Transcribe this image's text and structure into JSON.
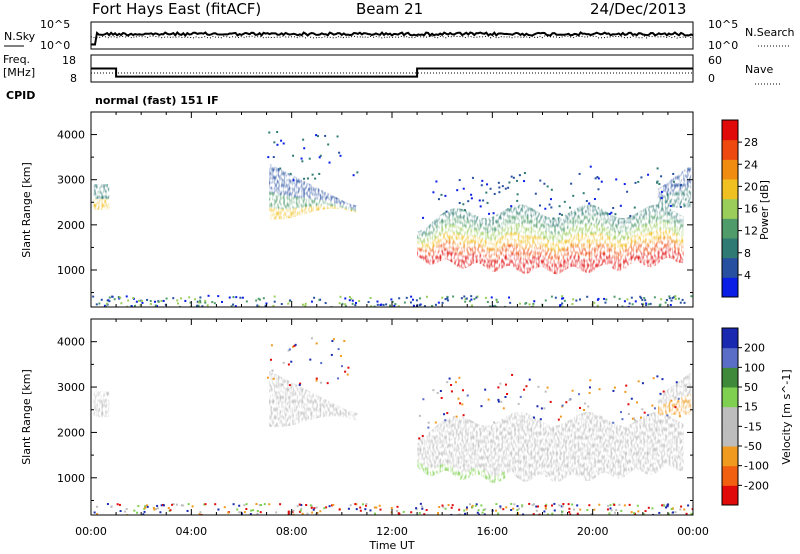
{
  "header": {
    "station": "Fort Hays East (fitACF)",
    "beam": "Beam 21",
    "date": "24/Dec/2013"
  },
  "noise_panel": {
    "left_label": "N.Sky",
    "right_label": "N.Search",
    "left_ticks": [
      "10^5",
      "10^0"
    ],
    "right_ticks": [
      "10^5",
      "10^0"
    ]
  },
  "freq_panel": {
    "left_label_1": "Freq.",
    "left_label_2": "[MHz]",
    "left_ticks": [
      "18",
      "8"
    ],
    "right_label": "Nave",
    "right_ticks": [
      "60",
      "0"
    ]
  },
  "cpid": {
    "label": "CPID",
    "mode": "normal (fast) 151 IF"
  },
  "colors": {
    "power_scale": [
      "#0a1ee6",
      "#2850a0",
      "#2f7a72",
      "#4f9c6a",
      "#9acd5a",
      "#f0c020",
      "#f08c10",
      "#ee4a10",
      "#e00a0a"
    ],
    "velocity_scale": [
      "#e00a0a",
      "#f06010",
      "#f09a20",
      "#bdbdbd",
      "#bdbdbd",
      "#7fd050",
      "#3f8a3a",
      "#5a6ec8",
      "#1a2ab0"
    ],
    "ground_scatter": "#bdbdbd"
  },
  "chart_data": [
    {
      "type": "heatmap",
      "title": "",
      "parameter": "Power",
      "xlabel": "Time UT",
      "ylabel": "Slant Range [km]",
      "xlim": [
        "00:00",
        "24:00"
      ],
      "ylim": [
        180,
        4500
      ],
      "x_tick_labels": [
        "00:00",
        "04:00",
        "08:00",
        "12:00",
        "16:00",
        "20:00",
        "00:00"
      ],
      "y_tick_labels": [
        "1000",
        "2000",
        "3000",
        "4000"
      ],
      "colorbar": {
        "label": "Power [dB]",
        "ticks": [
          "4",
          "8",
          "12",
          "16",
          "20",
          "24",
          "28"
        ],
        "range": [
          0,
          30
        ]
      },
      "echo_regions": [
        {
          "t_start": 0.1,
          "t_end": 0.7,
          "r_low": 2350,
          "r_high": 2900,
          "level_db": 18
        },
        {
          "t_start": 7.1,
          "t_end": 10.6,
          "r_low": 2150,
          "r_high": 3400,
          "level_db": 14
        },
        {
          "t_start": 13.0,
          "t_end": 23.6,
          "r_low": 950,
          "r_high": 2500,
          "level_db": 24
        },
        {
          "t_start": 22.6,
          "t_end": 23.9,
          "r_low": 2400,
          "r_high": 3400,
          "level_db": 10
        }
      ]
    },
    {
      "type": "heatmap",
      "title": "",
      "parameter": "Velocity",
      "xlabel": "Time UT",
      "ylabel": "Slant Range [km]",
      "xlim": [
        "00:00",
        "24:00"
      ],
      "ylim": [
        180,
        4500
      ],
      "x_tick_labels": [
        "00:00",
        "04:00",
        "08:00",
        "12:00",
        "16:00",
        "20:00",
        "00:00"
      ],
      "y_tick_labels": [
        "1000",
        "2000",
        "3000",
        "4000"
      ],
      "colorbar": {
        "label": "Velocity [m s^-1]",
        "ticks": [
          "200",
          "100",
          "50",
          "15",
          "-15",
          "-50",
          "-100",
          "-200"
        ],
        "range": [
          -250,
          250
        ]
      },
      "echo_regions": [
        {
          "t_start": 0.1,
          "t_end": 0.7,
          "r_low": 2350,
          "r_high": 2900,
          "class": "ground scatter"
        },
        {
          "t_start": 7.1,
          "t_end": 10.6,
          "r_low": 2150,
          "r_high": 3400,
          "class": "ground scatter"
        },
        {
          "t_start": 13.0,
          "t_end": 23.6,
          "r_low": 950,
          "r_high": 2500,
          "class": "ground scatter"
        },
        {
          "t_start": 22.6,
          "t_end": 23.9,
          "r_low": 2400,
          "r_high": 3400,
          "class": "mixed -15 to -100"
        }
      ]
    },
    {
      "type": "line",
      "title": "",
      "series": [
        {
          "name": "Freq.",
          "x": [
            "00:00",
            "01:00",
            "01:00",
            "13:00",
            "13:00",
            "24:00"
          ],
          "values": [
            13,
            13,
            10,
            10,
            13,
            13
          ]
        },
        {
          "name": "Nave",
          "x": [
            "00:00",
            "24:00"
          ],
          "values": [
            20,
            20
          ]
        }
      ]
    }
  ]
}
